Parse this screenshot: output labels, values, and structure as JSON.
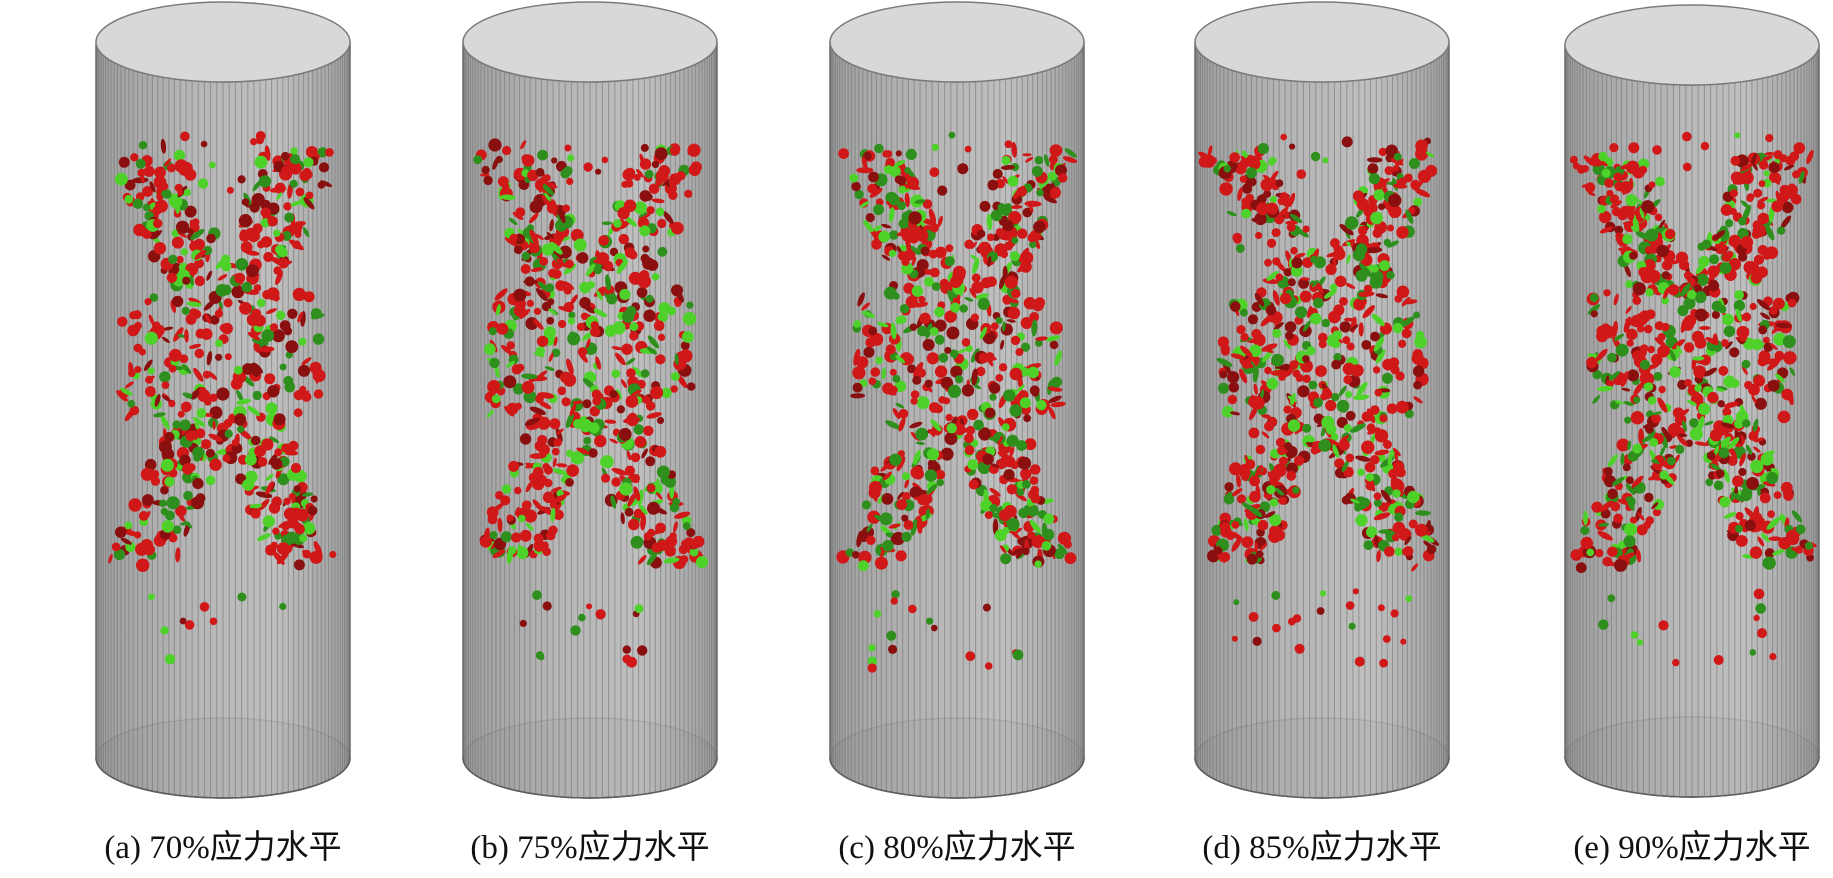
{
  "figure": {
    "panels": [
      {
        "caption": "(a) 70%应力水平",
        "level": 70
      },
      {
        "caption": "(b) 75%应力水平",
        "level": 75
      },
      {
        "caption": "(c) 80%应力水平",
        "level": 80
      },
      {
        "caption": "(d) 85%应力水平",
        "level": 85
      },
      {
        "caption": "(e) 90%应力水平",
        "level": 90
      }
    ],
    "colors": {
      "cylinder_body": "#a8a8a8",
      "cylinder_cap": "#d6d6d6",
      "cylinder_lines": "#6e6e6e",
      "crack_red": "#d01818",
      "crack_dark_red": "#8a1010",
      "crack_green": "#4ed22a",
      "crack_dark_green": "#2f8f1c"
    }
  }
}
